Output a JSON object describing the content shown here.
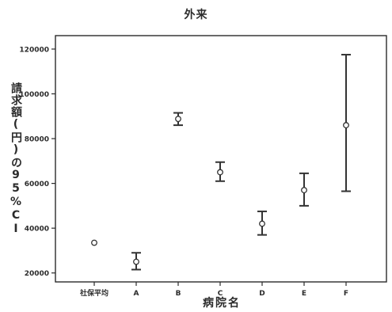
{
  "chart_data": {
    "type": "errorbar",
    "title": "外来",
    "xlabel": "病院名",
    "ylabel": "請求額(円)の95%CI",
    "categories": [
      "社保平均",
      "A",
      "B",
      "C",
      "D",
      "E",
      "F"
    ],
    "series": [
      {
        "points": [
          {
            "x": "社保平均",
            "mean": 33500,
            "lower": null,
            "upper": null
          },
          {
            "x": "A",
            "mean": 25000,
            "lower": 21500,
            "upper": 29000
          },
          {
            "x": "B",
            "mean": 88800,
            "lower": 86000,
            "upper": 91500
          },
          {
            "x": "C",
            "mean": 65000,
            "lower": 61000,
            "upper": 69500
          },
          {
            "x": "D",
            "mean": 42000,
            "lower": 37000,
            "upper": 47500
          },
          {
            "x": "E",
            "mean": 57000,
            "lower": 50000,
            "upper": 64500
          },
          {
            "x": "F",
            "mean": 86000,
            "lower": 56500,
            "upper": 117500
          }
        ]
      }
    ],
    "ylim": [
      16000,
      126000
    ],
    "yticks": [
      20000,
      40000,
      60000,
      80000,
      100000,
      120000
    ],
    "grid": false,
    "legend": "none",
    "colors": {
      "axis": "#2b2b2b",
      "marker": "#333333",
      "text": "#2b2b2b"
    }
  }
}
